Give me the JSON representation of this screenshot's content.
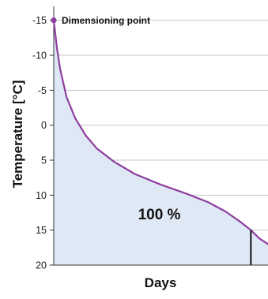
{
  "chart_data": {
    "type": "area",
    "title": "",
    "xlabel": "Days",
    "ylabel": "Temperature [°C]",
    "ylim": [
      -17,
      20
    ],
    "y_inverted": true,
    "yticks": [
      -15,
      -10,
      -5,
      0,
      5,
      10,
      15,
      20
    ],
    "ytick_labels": [
      "-15",
      "-10",
      "-5",
      "0",
      "5",
      "10",
      "15",
      "20"
    ],
    "grid": "horizontal",
    "x_ticks_shown": false,
    "xlim": [
      0,
      100
    ],
    "series": [
      {
        "values": [
          {
            "x": 0,
            "y": -15
          },
          {
            "x": 1.5,
            "y": -11
          },
          {
            "x": 3,
            "y": -8
          },
          {
            "x": 6,
            "y": -4
          },
          {
            "x": 10,
            "y": -1
          },
          {
            "x": 15,
            "y": 1.5
          },
          {
            "x": 20,
            "y": 3.3
          },
          {
            "x": 28,
            "y": 5.2
          },
          {
            "x": 38,
            "y": 7
          },
          {
            "x": 50,
            "y": 8.5
          },
          {
            "x": 62,
            "y": 9.8
          },
          {
            "x": 72,
            "y": 11
          },
          {
            "x": 80,
            "y": 12.3
          },
          {
            "x": 87,
            "y": 13.8
          },
          {
            "x": 92,
            "y": 15
          },
          {
            "x": 96,
            "y": 16.2
          },
          {
            "x": 100,
            "y": 17
          }
        ]
      }
    ],
    "colors": {
      "line": "#8e3fa0",
      "fill": "#dfe8f5",
      "grid": "#c7c7cd",
      "axis": "#333333",
      "marker_line": "#111111"
    },
    "annotations": [
      {
        "text": "Dimensioning point",
        "x": 0,
        "y": -15
      },
      {
        "text": "100 %",
        "x": 50,
        "y": 12.8
      }
    ],
    "vertical_marker": {
      "x": 92,
      "y_from": 15,
      "y_to": 20
    }
  }
}
